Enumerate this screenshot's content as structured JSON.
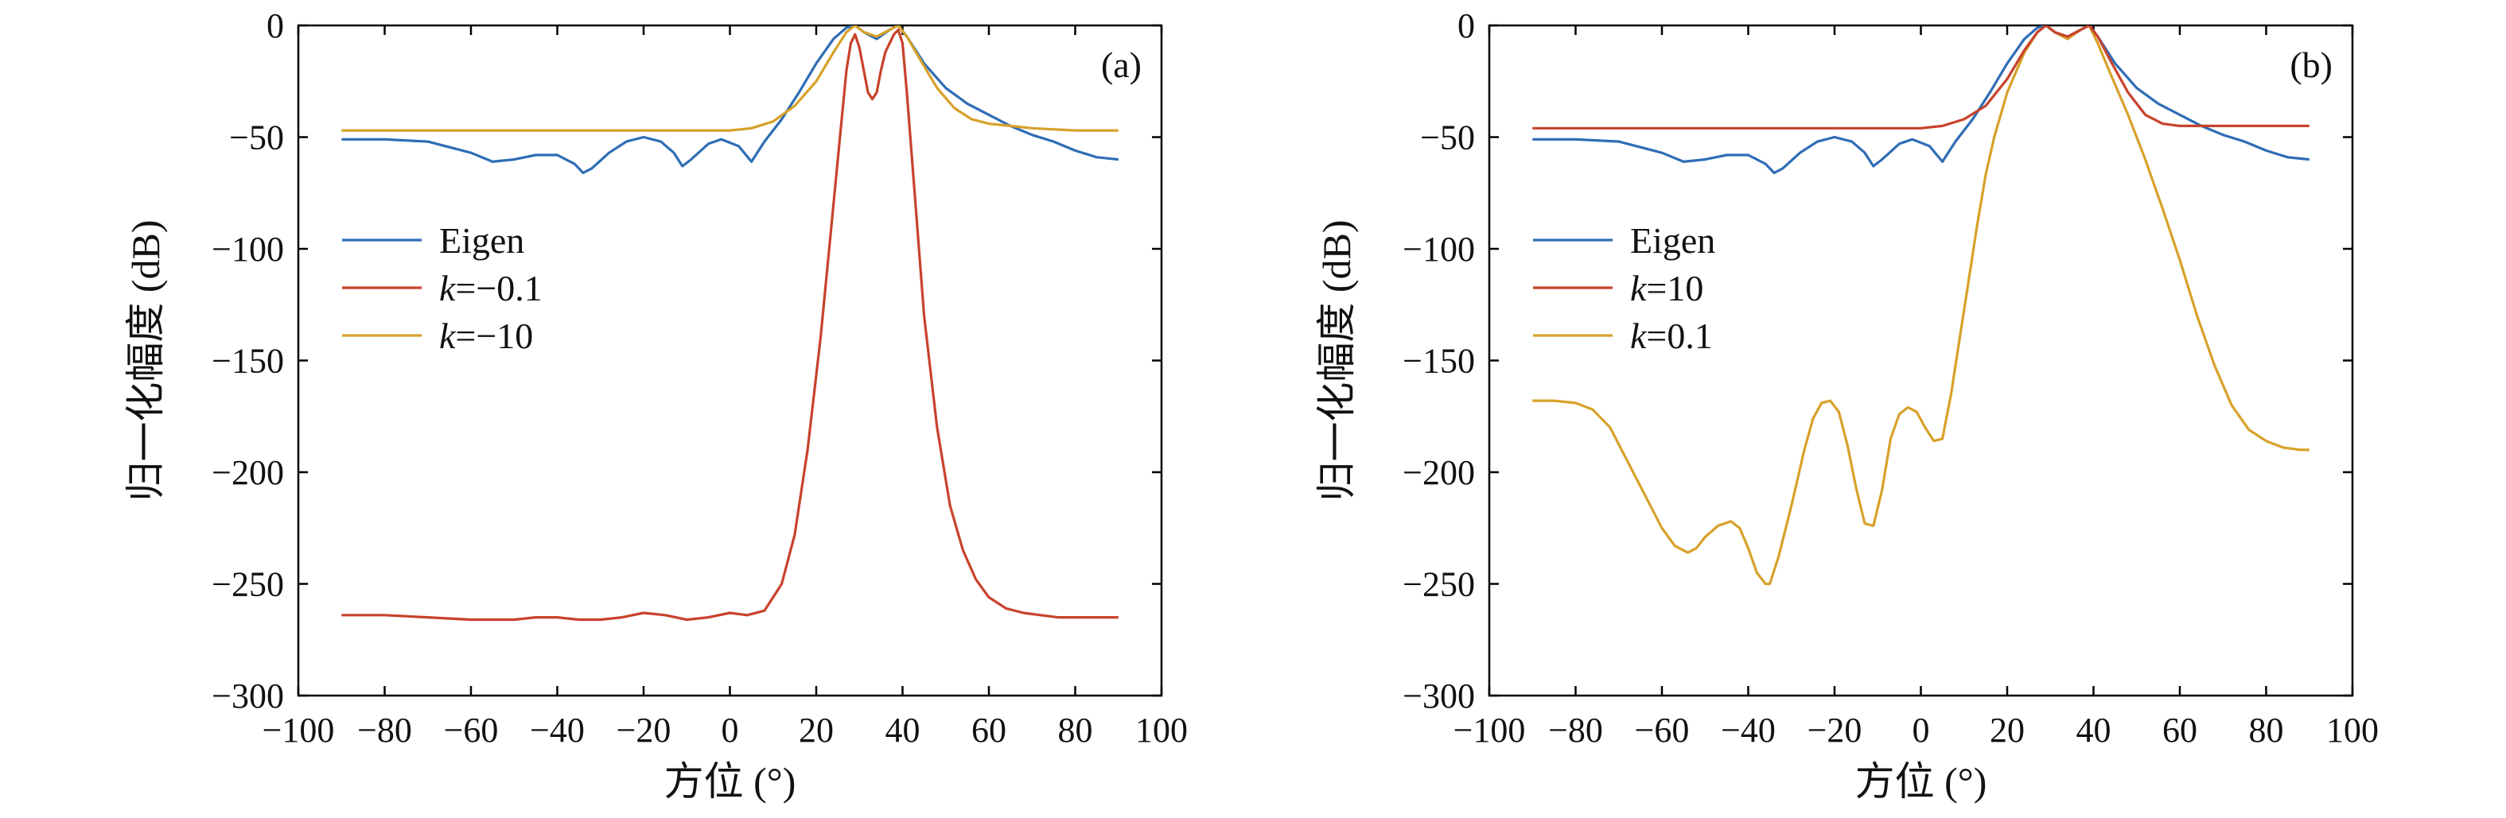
{
  "chart_data": [
    {
      "type": "line",
      "panel_label": "(a)",
      "xlabel": "方位 (°)",
      "ylabel": "归一化幅度 (dB)",
      "xlim": [
        -100,
        100
      ],
      "ylim": [
        -300,
        0
      ],
      "xticks": [
        -100,
        -80,
        -60,
        -40,
        -20,
        0,
        20,
        40,
        60,
        80,
        100
      ],
      "yticks": [
        0,
        -50,
        -100,
        -150,
        -200,
        -250,
        -300
      ],
      "xtick_labels": [
        "−100",
        "−80",
        "−60",
        "−40",
        "−20",
        "0",
        "20",
        "40",
        "60",
        "80",
        "100"
      ],
      "ytick_labels": [
        "0",
        "−50",
        "−100",
        "−150",
        "−200",
        "−250",
        "−300"
      ],
      "grid": false,
      "legend_position": "center-left",
      "series": [
        {
          "name": "Eigen",
          "label_prefix": "",
          "label_rest": "Eigen",
          "color": "#2f6db5",
          "x": [
            -90,
            -80,
            -70,
            -60,
            -55,
            -50,
            -45,
            -40,
            -36,
            -34,
            -32,
            -28,
            -24,
            -20,
            -16,
            -13,
            -11,
            -9,
            -5,
            -2,
            2,
            5,
            8,
            12,
            16,
            20,
            24,
            27,
            29,
            31,
            34,
            37,
            39,
            41,
            45,
            50,
            55,
            60,
            65,
            70,
            75,
            80,
            85,
            90
          ],
          "y": [
            -51,
            -51,
            -52,
            -57,
            -61,
            -60,
            -58,
            -58,
            -62,
            -66,
            -64,
            -57,
            -52,
            -50,
            -52,
            -57,
            -63,
            -60,
            -53,
            -51,
            -54,
            -61,
            -52,
            -42,
            -30,
            -17,
            -6,
            -1,
            0,
            -3,
            -6,
            -2,
            0,
            -5,
            -17,
            -28,
            -35,
            -40,
            -45,
            -49,
            -52,
            -56,
            -59,
            -60
          ]
        },
        {
          "name": "k=−0.1",
          "label_prefix": "k",
          "label_rest": "=−0.1",
          "color": "#c8422b",
          "x": [
            -90,
            -80,
            -70,
            -60,
            -55,
            -50,
            -45,
            -40,
            -35,
            -30,
            -25,
            -20,
            -15,
            -10,
            -5,
            0,
            4,
            8,
            12,
            15,
            18,
            21,
            23,
            25,
            27,
            28,
            29,
            30,
            31,
            32,
            33,
            34,
            35,
            36,
            37,
            38,
            39,
            40,
            41,
            43,
            45,
            48,
            51,
            54,
            57,
            60,
            64,
            68,
            72,
            76,
            80,
            85,
            90
          ],
          "y": [
            -264,
            -264,
            -265,
            -266,
            -266,
            -266,
            -265,
            -265,
            -266,
            -266,
            -265,
            -263,
            -264,
            -266,
            -265,
            -263,
            -264,
            -262,
            -250,
            -228,
            -190,
            -140,
            -100,
            -60,
            -20,
            -8,
            -4,
            -10,
            -20,
            -30,
            -33,
            -30,
            -20,
            -12,
            -8,
            -4,
            -2,
            -8,
            -30,
            -80,
            -130,
            -180,
            -215,
            -235,
            -248,
            -256,
            -261,
            -263,
            -264,
            -265,
            -265,
            -265,
            -265
          ]
        },
        {
          "name": "k=−10",
          "label_prefix": "k",
          "label_rest": "=−10",
          "color": "#d7a12a",
          "x": [
            -90,
            -70,
            -50,
            -30,
            -10,
            0,
            5,
            10,
            15,
            20,
            24,
            27,
            29,
            31,
            34,
            37,
            39,
            41,
            44,
            48,
            52,
            56,
            60,
            65,
            70,
            80,
            90
          ],
          "y": [
            -47,
            -47,
            -47,
            -47,
            -47,
            -47,
            -46,
            -43,
            -36,
            -25,
            -12,
            -3,
            0,
            -3,
            -5,
            -2,
            0,
            -5,
            -15,
            -28,
            -37,
            -42,
            -44,
            -45,
            -46,
            -47,
            -47
          ]
        }
      ]
    },
    {
      "type": "line",
      "panel_label": "(b)",
      "xlabel": "方位 (°)",
      "ylabel": "归一化幅度 (dB)",
      "xlim": [
        -100,
        100
      ],
      "ylim": [
        -300,
        0
      ],
      "xticks": [
        -100,
        -80,
        -60,
        -40,
        -20,
        0,
        20,
        40,
        60,
        80,
        100
      ],
      "yticks": [
        0,
        -50,
        -100,
        -150,
        -200,
        -250,
        -300
      ],
      "xtick_labels": [
        "−100",
        "−80",
        "−60",
        "−40",
        "−20",
        "0",
        "20",
        "40",
        "60",
        "80",
        "100"
      ],
      "ytick_labels": [
        "0",
        "−50",
        "−100",
        "−150",
        "−200",
        "−250",
        "−300"
      ],
      "grid": false,
      "legend_position": "center-left",
      "series": [
        {
          "name": "Eigen",
          "label_prefix": "",
          "label_rest": "Eigen",
          "color": "#2f6db5",
          "x": [
            -90,
            -80,
            -70,
            -60,
            -55,
            -50,
            -45,
            -40,
            -36,
            -34,
            -32,
            -28,
            -24,
            -20,
            -16,
            -13,
            -11,
            -9,
            -5,
            -2,
            2,
            5,
            8,
            12,
            16,
            20,
            24,
            27,
            29,
            31,
            34,
            37,
            39,
            41,
            45,
            50,
            55,
            60,
            65,
            70,
            75,
            80,
            85,
            90
          ],
          "y": [
            -51,
            -51,
            -52,
            -57,
            -61,
            -60,
            -58,
            -58,
            -62,
            -66,
            -64,
            -57,
            -52,
            -50,
            -52,
            -57,
            -63,
            -60,
            -53,
            -51,
            -54,
            -61,
            -52,
            -42,
            -30,
            -17,
            -6,
            -1,
            0,
            -3,
            -6,
            -2,
            0,
            -5,
            -17,
            -28,
            -35,
            -40,
            -45,
            -49,
            -52,
            -56,
            -59,
            -60
          ]
        },
        {
          "name": "k=10",
          "label_prefix": "k",
          "label_rest": "=10",
          "color": "#c8422b",
          "x": [
            -90,
            -70,
            -50,
            -30,
            -10,
            0,
            5,
            10,
            15,
            20,
            24,
            27,
            29,
            31,
            34,
            37,
            39,
            41,
            44,
            48,
            52,
            56,
            60,
            65,
            70,
            80,
            90
          ],
          "y": [
            -46,
            -46,
            -46,
            -46,
            -46,
            -46,
            -45,
            -42,
            -36,
            -24,
            -11,
            -3,
            0,
            -3,
            -5,
            -2,
            0,
            -5,
            -16,
            -30,
            -40,
            -44,
            -45,
            -45,
            -45,
            -45,
            -45
          ]
        },
        {
          "name": "k=0.1",
          "label_prefix": "k",
          "label_rest": "=0.1",
          "color": "#d7a12a",
          "x": [
            -90,
            -85,
            -80,
            -76,
            -72,
            -68,
            -64,
            -60,
            -57,
            -54,
            -52,
            -50,
            -47,
            -44,
            -42,
            -40,
            -38,
            -36,
            -35,
            -33,
            -30,
            -27,
            -25,
            -23,
            -21,
            -19,
            -17,
            -15,
            -13,
            -11,
            -9,
            -7,
            -5,
            -3,
            -1,
            1,
            3,
            5,
            7,
            9,
            11,
            13,
            15,
            17,
            20,
            24,
            27,
            29,
            31,
            34,
            37,
            39,
            41,
            44,
            48,
            52,
            56,
            60,
            64,
            68,
            72,
            76,
            80,
            84,
            88,
            90
          ],
          "y": [
            -168,
            -168,
            -169,
            -172,
            -180,
            -195,
            -210,
            -225,
            -233,
            -236,
            -234,
            -229,
            -224,
            -222,
            -225,
            -234,
            -245,
            -250,
            -250,
            -238,
            -215,
            -190,
            -176,
            -169,
            -168,
            -173,
            -188,
            -207,
            -223,
            -224,
            -208,
            -185,
            -174,
            -171,
            -173,
            -180,
            -186,
            -185,
            -165,
            -140,
            -115,
            -90,
            -67,
            -50,
            -30,
            -12,
            -3,
            0,
            -3,
            -6,
            -2,
            0,
            -8,
            -22,
            -40,
            -60,
            -82,
            -105,
            -130,
            -152,
            -170,
            -181,
            -186,
            -189,
            -190,
            -190
          ]
        }
      ]
    }
  ]
}
